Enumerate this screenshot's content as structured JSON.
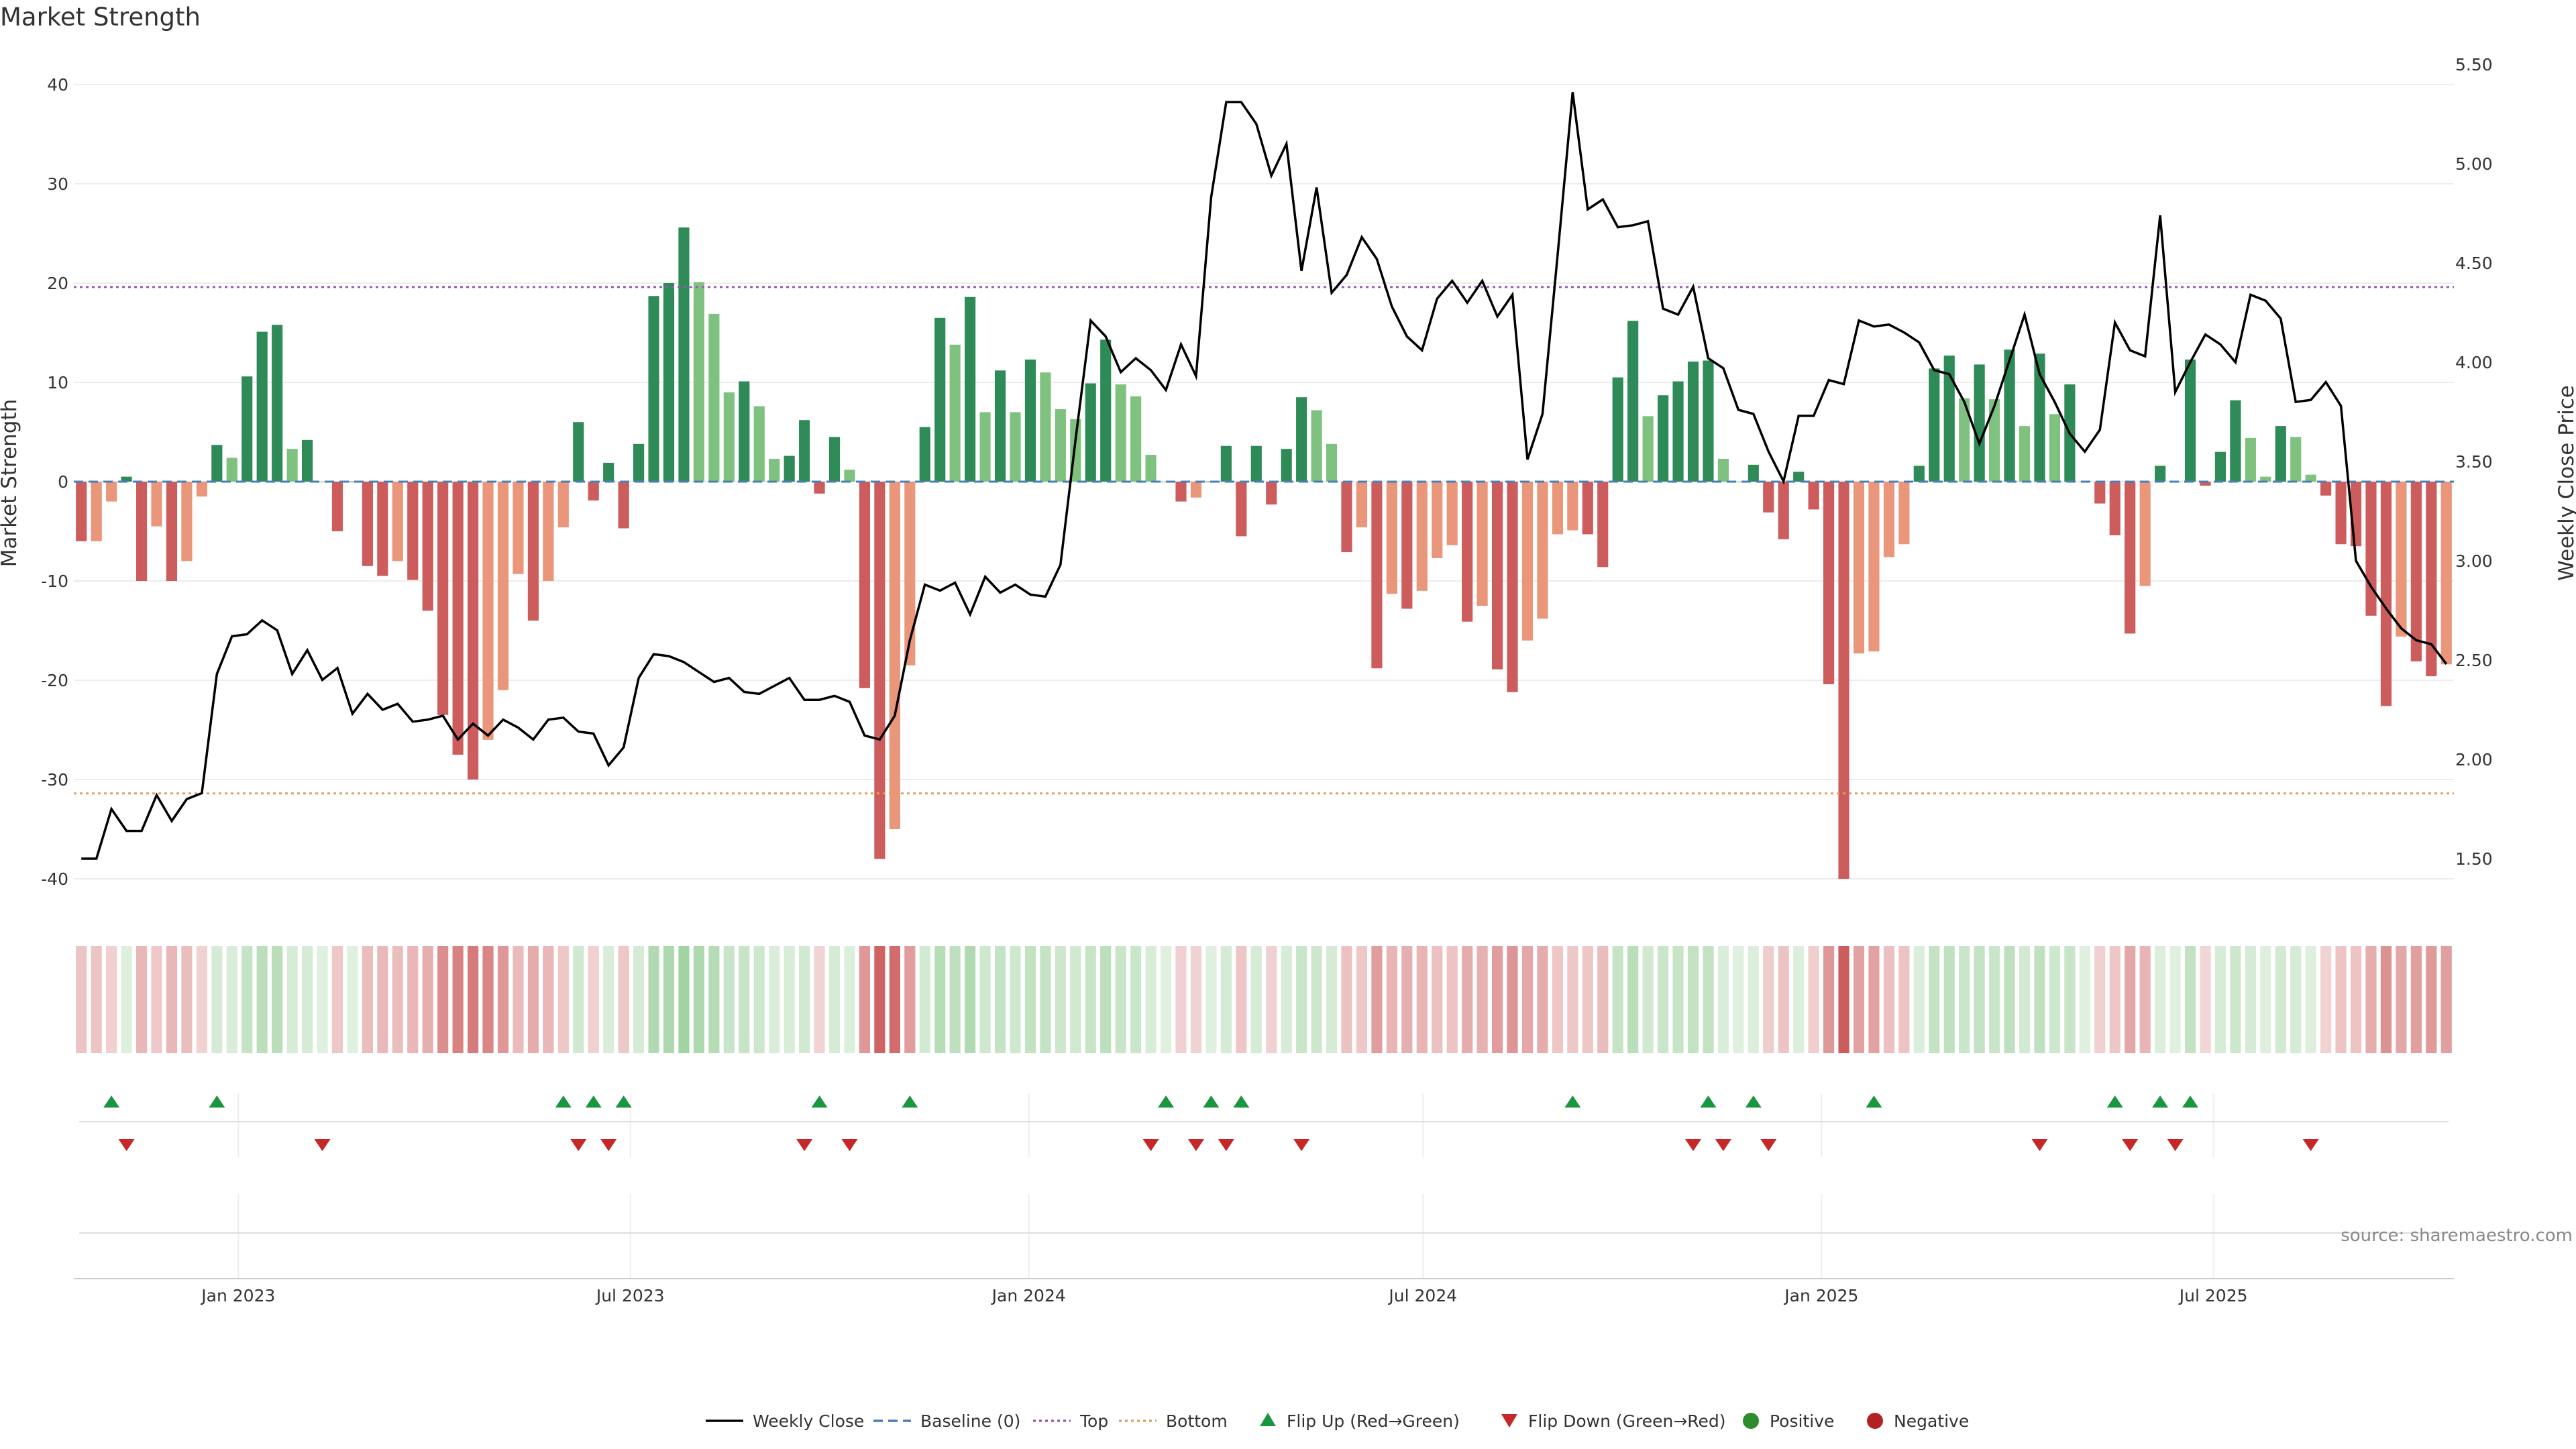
{
  "chart_data": {
    "type": "bar",
    "title": "Market Strength",
    "ylabel": "Market Strength",
    "y2label": "Weekly Close Price",
    "ylim": [
      -43,
      43
    ],
    "y_ticks": [
      40,
      30,
      20,
      10,
      0,
      -10,
      -20,
      -30,
      -40
    ],
    "y2lim": [
      1.38,
      5.62
    ],
    "y2_ticks": [
      "5.50",
      "5.00",
      "4.50",
      "4.00",
      "3.50",
      "3.00",
      "2.50",
      "2.00",
      "1.50"
    ],
    "top_level": 19.6,
    "bottom_level": -31.4,
    "x_start": "2022-10-17",
    "x_end": "2025-10-20",
    "x_ticks": [
      {
        "date": "2023-01-01",
        "label": "Jan 2023"
      },
      {
        "date": "2023-07-01",
        "label": "Jul 2023"
      },
      {
        "date": "2024-01-01",
        "label": "Jan 2024"
      },
      {
        "date": "2024-07-01",
        "label": "Jul 2024"
      },
      {
        "date": "2025-01-01",
        "label": "Jan 2025"
      },
      {
        "date": "2025-07-01",
        "label": "Jul 2025"
      }
    ],
    "strength": [
      -6,
      -6,
      -2,
      0.5,
      -10,
      -4.5,
      -10,
      -8,
      -1.5,
      3.7,
      2.4,
      10.6,
      15.1,
      15.8,
      3.3,
      4.2,
      0,
      -5,
      0,
      -8.5,
      -9.5,
      -8,
      -9.9,
      -13,
      -23.5,
      -27.5,
      -30,
      -26,
      -21,
      -9.3,
      -14,
      -10,
      -4.6,
      6,
      -1.9,
      1.9,
      -4.7,
      3.8,
      18.7,
      20,
      25.6,
      20.1,
      16.9,
      9,
      10.1,
      7.6,
      2.3,
      2.6,
      6.2,
      -1.2,
      4.5,
      1.2,
      -20.8,
      -38,
      -35,
      -18.5,
      5.5,
      16.5,
      13.8,
      18.6,
      7,
      11.2,
      7,
      12.3,
      11,
      7.3,
      6.3,
      9.9,
      14.3,
      9.8,
      8.6,
      2.7,
      0,
      -2,
      -1.6,
      0,
      3.6,
      -5.5,
      3.6,
      -2.3,
      3.3,
      8.5,
      7.2,
      3.8,
      -7.1,
      -4.6,
      -18.8,
      -11.3,
      -12.8,
      -11,
      -7.7,
      -6.4,
      -14.1,
      -12.5,
      -18.9,
      -21.2,
      -16,
      -13.8,
      -5.3,
      -4.9,
      -5.3,
      -8.6,
      10.5,
      16.2,
      6.6,
      8.7,
      10.1,
      12.1,
      12.2,
      2.3,
      0,
      1.7,
      -3.1,
      -5.8,
      1,
      -2.8,
      -20.4,
      -40,
      -17.3,
      -17.1,
      -7.6,
      -6.3,
      1.6,
      11.4,
      12.7,
      8.4,
      11.8,
      8.3,
      13.3,
      5.6,
      12.9,
      6.8,
      9.8,
      0,
      -2.2,
      -5.4,
      -15.3,
      -10.5,
      1.6,
      0,
      12.3,
      -0.4,
      3,
      8.2,
      4.4,
      0.5,
      5.6,
      4.5,
      0.7,
      -1.4,
      -6.3,
      -6.5,
      -13.5,
      -22.6,
      -15.6,
      -18.1,
      -19.6,
      -18.4
    ],
    "close": [
      1.5,
      1.5,
      1.75,
      1.64,
      1.64,
      1.82,
      1.69,
      1.8,
      1.83,
      2.43,
      2.62,
      2.63,
      2.7,
      2.65,
      2.43,
      2.55,
      2.4,
      2.46,
      2.23,
      2.33,
      2.25,
      2.28,
      2.19,
      2.2,
      2.22,
      2.1,
      2.18,
      2.12,
      2.2,
      2.16,
      2.1,
      2.2,
      2.21,
      2.14,
      2.13,
      1.97,
      2.06,
      2.41,
      2.53,
      2.52,
      2.49,
      2.44,
      2.39,
      2.41,
      2.34,
      2.33,
      2.37,
      2.41,
      2.3,
      2.3,
      2.32,
      2.29,
      2.12,
      2.1,
      2.22,
      2.6,
      2.88,
      2.85,
      2.89,
      2.73,
      2.92,
      2.84,
      2.88,
      2.83,
      2.82,
      2.98,
      3.61,
      4.21,
      4.13,
      3.95,
      4.02,
      3.96,
      3.86,
      4.09,
      3.93,
      4.83,
      5.31,
      5.31,
      5.2,
      4.94,
      5.1,
      4.46,
      4.88,
      4.35,
      4.44,
      4.63,
      4.52,
      4.28,
      4.13,
      4.06,
      4.32,
      4.41,
      4.3,
      4.41,
      4.23,
      4.34,
      3.51,
      3.74,
      4.54,
      5.36,
      4.77,
      4.82,
      4.68,
      4.69,
      4.71,
      4.27,
      4.24,
      4.38,
      4.02,
      3.97,
      3.76,
      3.74,
      3.55,
      3.4,
      3.73,
      3.73,
      3.91,
      3.89,
      4.21,
      4.18,
      4.19,
      4.15,
      4.1,
      3.96,
      3.94,
      3.8,
      3.59,
      3.78,
      4.01,
      4.24,
      3.94,
      3.8,
      3.64,
      3.55,
      3.66,
      4.2,
      4.06,
      4.03,
      4.74,
      3.85,
      4.0,
      4.14,
      4.09,
      4.0,
      4.34,
      4.31,
      4.22,
      3.8,
      3.81,
      3.9,
      3.78,
      3.0,
      2.87,
      2.76,
      2.66,
      2.6,
      2.58,
      2.48
    ],
    "flips": [
      {
        "dir": "up",
        "i": 2
      },
      {
        "dir": "down",
        "i": 3
      },
      {
        "dir": "up",
        "i": 9
      },
      {
        "dir": "down",
        "i": 16
      },
      {
        "dir": "up",
        "i": 32
      },
      {
        "dir": "down",
        "i": 33
      },
      {
        "dir": "up",
        "i": 34
      },
      {
        "dir": "down",
        "i": 35
      },
      {
        "dir": "up",
        "i": 36
      },
      {
        "dir": "down",
        "i": 48
      },
      {
        "dir": "up",
        "i": 49
      },
      {
        "dir": "down",
        "i": 51
      },
      {
        "dir": "up",
        "i": 55
      },
      {
        "dir": "down",
        "i": 71
      },
      {
        "dir": "up",
        "i": 72
      },
      {
        "dir": "down",
        "i": 74
      },
      {
        "dir": "up",
        "i": 75
      },
      {
        "dir": "down",
        "i": 76
      },
      {
        "dir": "up",
        "i": 77
      },
      {
        "dir": "down",
        "i": 81
      },
      {
        "dir": "up",
        "i": 99
      },
      {
        "dir": "down",
        "i": 107
      },
      {
        "dir": "up",
        "i": 108
      },
      {
        "dir": "down",
        "i": 109
      },
      {
        "dir": "up",
        "i": 111
      },
      {
        "dir": "down",
        "i": 112
      },
      {
        "dir": "up",
        "i": 119
      },
      {
        "dir": "down",
        "i": 130
      },
      {
        "dir": "up",
        "i": 135
      },
      {
        "dir": "down",
        "i": 136
      },
      {
        "dir": "up",
        "i": 138
      },
      {
        "dir": "down",
        "i": 139
      },
      {
        "dir": "up",
        "i": 140
      },
      {
        "dir": "down",
        "i": 148
      }
    ],
    "source": "source: sharemaestro.com",
    "legend": [
      "Weekly Close",
      "Baseline (0)",
      "Top",
      "Bottom",
      "Flip Up (Red→Green)",
      "Flip Down (Green→Red)",
      "Positive",
      "Negative"
    ],
    "colors": {
      "pos_strong": "#2e8b57",
      "pos_light": "#7fc27f",
      "neg_strong": "#cd5c5c",
      "neg_light": "#e9967a",
      "close_line": "#000000",
      "baseline": "#4a7fb5",
      "top": "#9b59b6",
      "bottom": "#e0a060",
      "flip_up": "#1a9641",
      "flip_down": "#c62828",
      "positive_dot": "#2e8b2e",
      "negative_dot": "#b22222"
    }
  }
}
